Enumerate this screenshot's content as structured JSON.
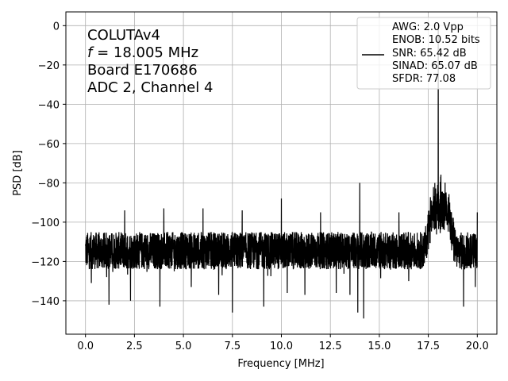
{
  "chart_data": {
    "type": "line",
    "xlabel": "Frequency [MHz]",
    "ylabel": "PSD [dB]",
    "xlim": [
      -1.0,
      21.0
    ],
    "ylim": [
      -157,
      7
    ],
    "xticks": [
      0.0,
      2.5,
      5.0,
      7.5,
      10.0,
      12.5,
      15.0,
      17.5,
      20.0
    ],
    "xtick_labels": [
      "0.0",
      "2.5",
      "5.0",
      "7.5",
      "10.0",
      "12.5",
      "15.0",
      "17.5",
      "20.0"
    ],
    "yticks": [
      0,
      -20,
      -40,
      -60,
      -80,
      -100,
      -120,
      -140
    ],
    "ytick_labels": [
      "0",
      "−20",
      "−40",
      "−60",
      "−80",
      "−100",
      "−120",
      "−140"
    ],
    "grid": true,
    "legend_position": "top-right",
    "line_color": "#000000",
    "annotation_lines": [
      "COLUTAv4",
      "f = 18.005 MHz",
      "Board E170686",
      "ADC 2, Channel 4"
    ],
    "annotation_italic_prefix": "f",
    "annotation_f_rest": " = 18.005 MHz",
    "legend_lines": [
      "AWG: 2.0 Vpp",
      "ENOB: 10.52 bits",
      "SNR: 65.42 dB",
      "SINAD: 65.07 dB",
      "SFDR: 77.08"
    ],
    "series": [
      {
        "noise_floor_db": -114,
        "noise_band_db": [
          -124,
          -105
        ],
        "noise_dips_db": [
          [
            0.3,
            -131
          ],
          [
            1.2,
            -142
          ],
          [
            2.3,
            -140
          ],
          [
            3.8,
            -143
          ],
          [
            5.4,
            -133
          ],
          [
            6.8,
            -137
          ],
          [
            7.5,
            -146
          ],
          [
            9.1,
            -143
          ],
          [
            10.3,
            -136
          ],
          [
            11.2,
            -137
          ],
          [
            12.8,
            -136
          ],
          [
            13.5,
            -137
          ],
          [
            13.9,
            -146
          ],
          [
            14.2,
            -149
          ],
          [
            16.5,
            -130
          ],
          [
            19.3,
            -143
          ],
          [
            19.9,
            -133
          ]
        ],
        "spurs_db": [
          [
            2.0,
            -94
          ],
          [
            4.0,
            -93
          ],
          [
            6.0,
            -93
          ],
          [
            8.0,
            -94
          ],
          [
            10.0,
            -88
          ],
          [
            12.0,
            -95
          ],
          [
            14.0,
            -80
          ],
          [
            16.0,
            -95
          ],
          [
            20.0,
            -95
          ]
        ],
        "shoulder_band_mhz": [
          17.3,
          18.9
        ],
        "shoulder_peak_db": -84,
        "fundamental": {
          "x": 18.005,
          "y": 0
        }
      }
    ]
  }
}
